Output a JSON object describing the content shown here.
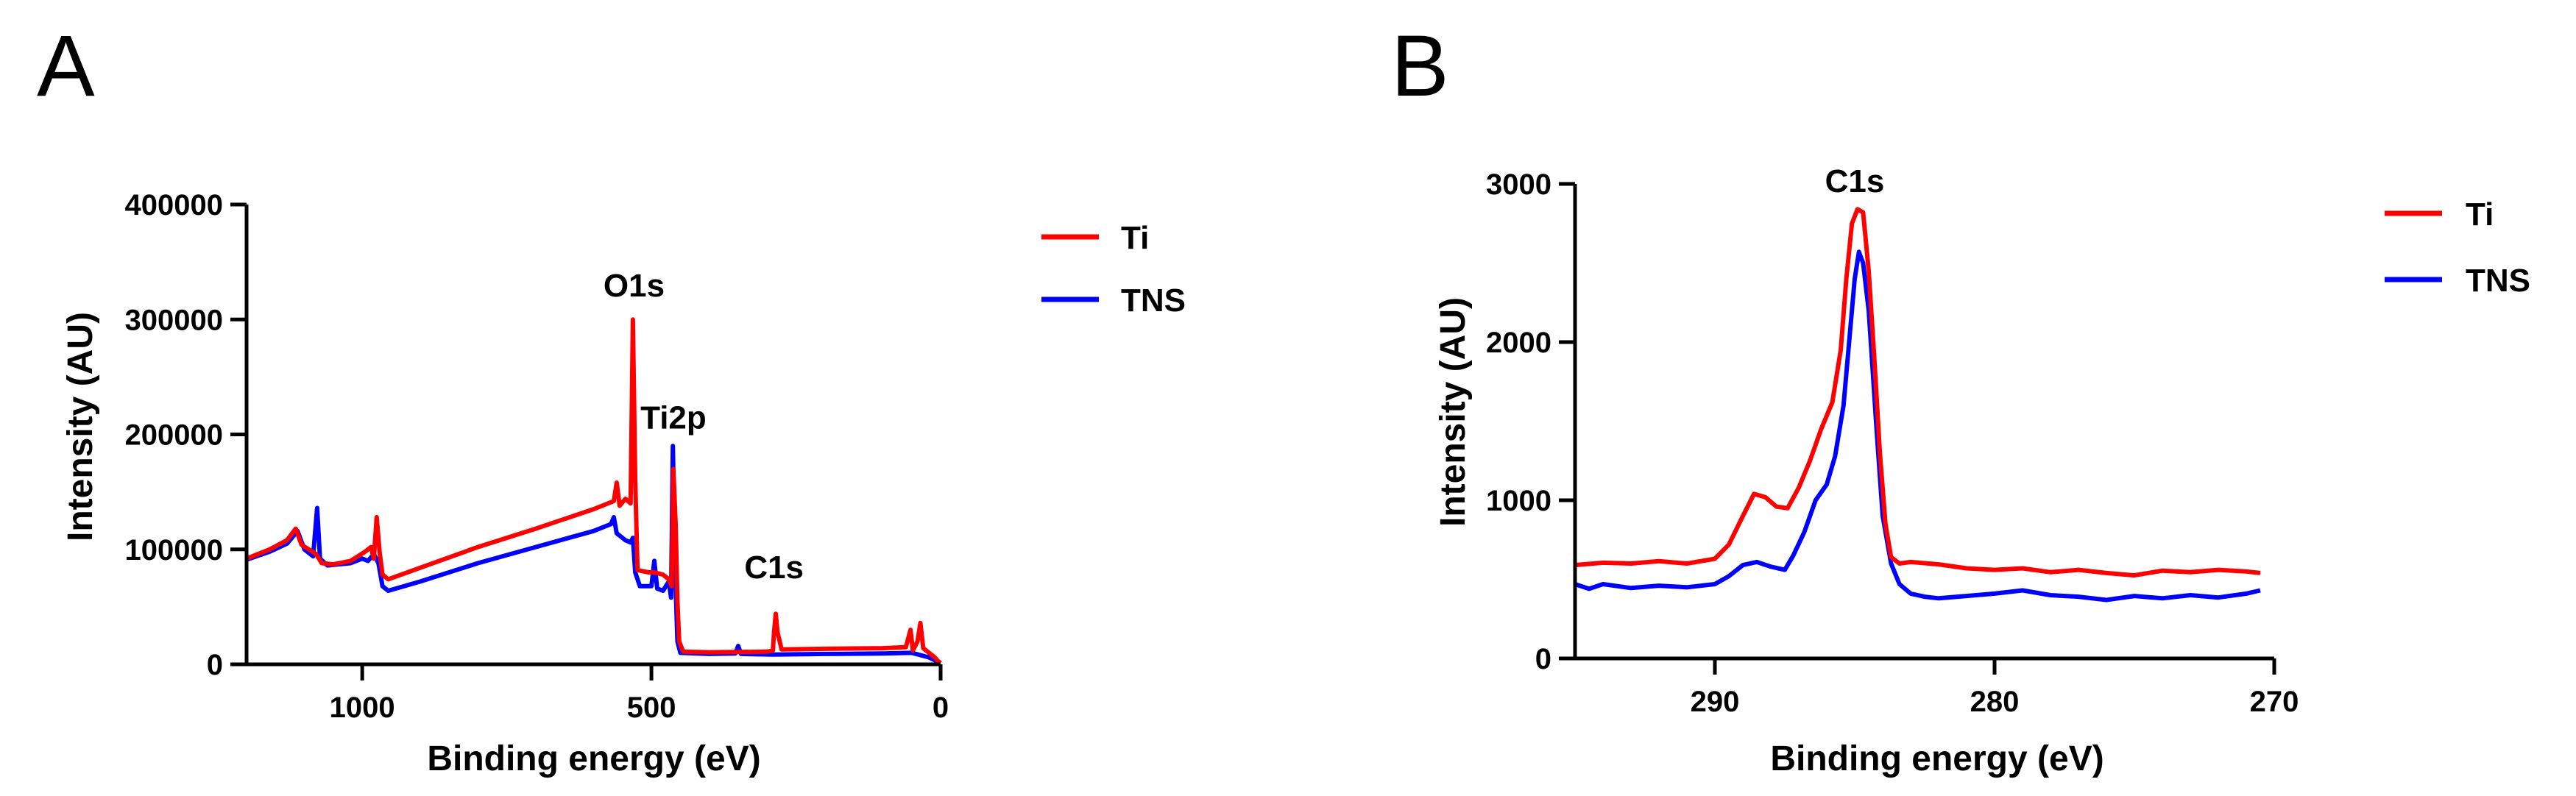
{
  "chart_data": [
    {
      "panel_label": "A",
      "type": "line",
      "xlabel": "Binding energy (eV)",
      "ylabel": "Intensity (AU)",
      "xlim": [
        1200,
        0
      ],
      "ylim": [
        0,
        400000
      ],
      "xticks": [
        1000,
        500,
        0
      ],
      "yticks": [
        0,
        100000,
        200000,
        300000,
        400000
      ],
      "legend_position": "top-right",
      "series": [
        {
          "name": "Ti",
          "color": "#ff0000",
          "points": [
            [
              1200,
              92000
            ],
            [
              1160,
              100000
            ],
            [
              1130,
              108000
            ],
            [
              1115,
              118000
            ],
            [
              1105,
              104000
            ],
            [
              1080,
              96000
            ],
            [
              1070,
              88000
            ],
            [
              1050,
              87000
            ],
            [
              1020,
              90000
            ],
            [
              995,
              98000
            ],
            [
              985,
              102000
            ],
            [
              980,
              92000
            ],
            [
              975,
              128000
            ],
            [
              970,
              98000
            ],
            [
              965,
              78000
            ],
            [
              955,
              74000
            ],
            [
              900,
              84000
            ],
            [
              800,
              102000
            ],
            [
              700,
              118000
            ],
            [
              600,
              135000
            ],
            [
              565,
              142000
            ],
            [
              560,
              158000
            ],
            [
              555,
              138000
            ],
            [
              545,
              144000
            ],
            [
              536,
              140000
            ],
            [
              532,
              300000
            ],
            [
              528,
              160000
            ],
            [
              524,
              82000
            ],
            [
              505,
              80000
            ],
            [
              495,
              80000
            ],
            [
              480,
              78000
            ],
            [
              470,
              74000
            ],
            [
              465,
              68000
            ],
            [
              462,
              170000
            ],
            [
              458,
              120000
            ],
            [
              455,
              55000
            ],
            [
              452,
              20000
            ],
            [
              445,
              11000
            ],
            [
              400,
              10500
            ],
            [
              300,
              11000
            ],
            [
              290,
              12000
            ],
            [
              288,
              28000
            ],
            [
              285,
              44000
            ],
            [
              282,
              28000
            ],
            [
              275,
              13000
            ],
            [
              200,
              13500
            ],
            [
              100,
              14000
            ],
            [
              60,
              15000
            ],
            [
              52,
              30000
            ],
            [
              48,
              12000
            ],
            [
              40,
              20000
            ],
            [
              35,
              36000
            ],
            [
              30,
              14000
            ],
            [
              20,
              10000
            ],
            [
              10,
              6000
            ],
            [
              5,
              3000
            ],
            [
              0,
              1000
            ]
          ]
        },
        {
          "name": "TNS",
          "color": "#0000ff",
          "points": [
            [
              1200,
              91000
            ],
            [
              1160,
              98000
            ],
            [
              1130,
              105000
            ],
            [
              1112,
              116000
            ],
            [
              1100,
              100000
            ],
            [
              1085,
              94000
            ],
            [
              1078,
              136000
            ],
            [
              1073,
              92000
            ],
            [
              1060,
              86000
            ],
            [
              1020,
              88000
            ],
            [
              1000,
              92000
            ],
            [
              990,
              90000
            ],
            [
              980,
              96000
            ],
            [
              972,
              88000
            ],
            [
              965,
              68000
            ],
            [
              955,
              64000
            ],
            [
              900,
              72000
            ],
            [
              800,
              88000
            ],
            [
              700,
              102000
            ],
            [
              600,
              116000
            ],
            [
              570,
              122000
            ],
            [
              565,
              128000
            ],
            [
              560,
              114000
            ],
            [
              545,
              108000
            ],
            [
              536,
              106000
            ],
            [
              532,
              110000
            ],
            [
              528,
              80000
            ],
            [
              520,
              68000
            ],
            [
              500,
              68000
            ],
            [
              495,
              90000
            ],
            [
              490,
              66000
            ],
            [
              480,
              64000
            ],
            [
              470,
              72000
            ],
            [
              466,
              58000
            ],
            [
              463,
              190000
            ],
            [
              459,
              82000
            ],
            [
              455,
              20000
            ],
            [
              450,
              10000
            ],
            [
              400,
              9000
            ],
            [
              355,
              9500
            ],
            [
              350,
              16000
            ],
            [
              345,
              9000
            ],
            [
              290,
              8500
            ],
            [
              200,
              9000
            ],
            [
              100,
              9500
            ],
            [
              50,
              10000
            ],
            [
              20,
              6000
            ],
            [
              0,
              1000
            ]
          ]
        }
      ],
      "annotations": [
        {
          "text": "O1s",
          "x": 530,
          "y": 320000
        },
        {
          "text": "Ti2p",
          "x": 462,
          "y": 205000
        },
        {
          "text": "C1s",
          "x": 288,
          "y": 75000
        }
      ]
    },
    {
      "panel_label": "B",
      "type": "line",
      "xlabel": "Binding energy (eV)",
      "ylabel": "Intensity (AU)",
      "xlim": [
        295,
        270
      ],
      "ylim": [
        0,
        3000
      ],
      "xticks": [
        290,
        280,
        270
      ],
      "yticks": [
        0,
        1000,
        2000,
        3000
      ],
      "legend_position": "top-right",
      "series": [
        {
          "name": "Ti",
          "color": "#ff0000",
          "points": [
            [
              295,
              590
            ],
            [
              294,
              605
            ],
            [
              293,
              600
            ],
            [
              292,
              615
            ],
            [
              291,
              600
            ],
            [
              290,
              630
            ],
            [
              289.5,
              720
            ],
            [
              289,
              900
            ],
            [
              288.6,
              1040
            ],
            [
              288.2,
              1020
            ],
            [
              287.8,
              960
            ],
            [
              287.4,
              950
            ],
            [
              287,
              1080
            ],
            [
              286.6,
              1250
            ],
            [
              286.2,
              1450
            ],
            [
              285.8,
              1620
            ],
            [
              285.5,
              1950
            ],
            [
              285.3,
              2400
            ],
            [
              285.1,
              2750
            ],
            [
              284.9,
              2840
            ],
            [
              284.7,
              2820
            ],
            [
              284.5,
              2450
            ],
            [
              284.3,
              1900
            ],
            [
              284.1,
              1300
            ],
            [
              283.9,
              850
            ],
            [
              283.7,
              640
            ],
            [
              283.4,
              600
            ],
            [
              283,
              610
            ],
            [
              282,
              595
            ],
            [
              281,
              570
            ],
            [
              280,
              560
            ],
            [
              279,
              570
            ],
            [
              278,
              545
            ],
            [
              277,
              560
            ],
            [
              276,
              540
            ],
            [
              275,
              525
            ],
            [
              274,
              555
            ],
            [
              273,
              545
            ],
            [
              272,
              560
            ],
            [
              271,
              550
            ],
            [
              270.5,
              540
            ]
          ]
        },
        {
          "name": "TNS",
          "color": "#0000ff",
          "points": [
            [
              295,
              470
            ],
            [
              294.5,
              440
            ],
            [
              294,
              470
            ],
            [
              293,
              445
            ],
            [
              292,
              460
            ],
            [
              291,
              450
            ],
            [
              290,
              470
            ],
            [
              289.5,
              520
            ],
            [
              289,
              590
            ],
            [
              288.5,
              610
            ],
            [
              288,
              580
            ],
            [
              287.5,
              560
            ],
            [
              287.2,
              650
            ],
            [
              286.8,
              800
            ],
            [
              286.4,
              1000
            ],
            [
              286,
              1100
            ],
            [
              285.7,
              1280
            ],
            [
              285.4,
              1600
            ],
            [
              285.2,
              2000
            ],
            [
              285,
              2400
            ],
            [
              284.85,
              2570
            ],
            [
              284.7,
              2500
            ],
            [
              284.5,
              2200
            ],
            [
              284.2,
              1400
            ],
            [
              284,
              900
            ],
            [
              283.7,
              600
            ],
            [
              283.4,
              470
            ],
            [
              283,
              410
            ],
            [
              282.5,
              390
            ],
            [
              282,
              380
            ],
            [
              281,
              395
            ],
            [
              280,
              410
            ],
            [
              279,
              430
            ],
            [
              278,
              400
            ],
            [
              277,
              390
            ],
            [
              276,
              370
            ],
            [
              275,
              395
            ],
            [
              274,
              380
            ],
            [
              273,
              400
            ],
            [
              272,
              385
            ],
            [
              271,
              410
            ],
            [
              270.5,
              430
            ]
          ]
        }
      ],
      "annotations": [
        {
          "text": "C1s",
          "x": 285,
          "y": 2950
        }
      ]
    }
  ]
}
